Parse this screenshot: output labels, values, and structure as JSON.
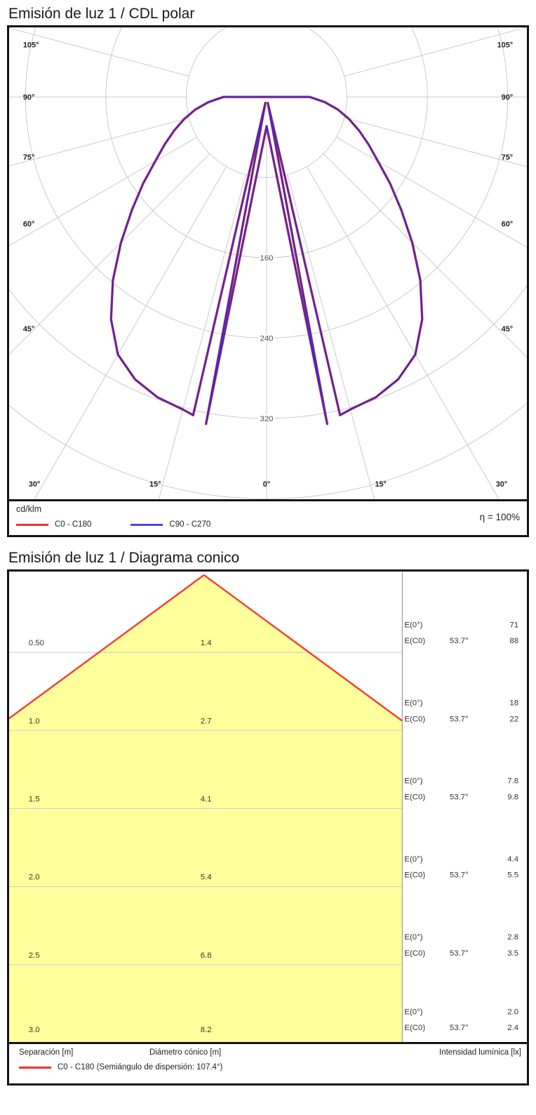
{
  "polar_panel": {
    "title": "Emisión de luz 1 / CDL polar",
    "unit_label": "cd/klm",
    "efficiency_label": "η = 100%",
    "legend": [
      {
        "label": "C0 - C180",
        "color": "#ee352b"
      },
      {
        "label": "C90 - C270",
        "color": "#4747ee"
      }
    ]
  },
  "cone_panel": {
    "title": "Emisión de luz 1 / Diagrama conico",
    "footer_columns": [
      "Separación [m]",
      "Diámetro cónico [m]",
      "Intensidad lumínica [lx]"
    ],
    "footer_legend": "C0 - C180 (Semiángulo de dispersión: 107.4°)",
    "legend_color": "#ee352b"
  },
  "chart_data": [
    {
      "type": "line",
      "variant": "polar-intensity-diagram",
      "title": "Emisión de luz 1 / CDL polar",
      "units": "cd/klm",
      "efficiency": "η = 100%",
      "angle_tick_labels_deg": [
        105,
        90,
        75,
        60,
        45,
        30,
        15,
        0
      ],
      "ring_values": [
        80,
        160,
        240,
        320,
        400,
        480
      ],
      "ring_labels": [
        160,
        240,
        320
      ],
      "symmetric": true,
      "series": [
        {
          "name": "C0 - C180",
          "color": "#d8281e"
        },
        {
          "name": "C90 - C270",
          "color": "#3a2bd2"
        }
      ],
      "samples_gamma_deg": [
        0,
        10.5,
        11.7,
        13,
        15,
        20,
        25,
        30,
        35,
        40,
        45,
        50,
        55,
        60,
        65,
        70,
        75,
        80,
        85,
        90,
        105
      ],
      "samples_cd_per_klm": [
        29,
        331,
        6,
        325,
        322,
        318,
        310,
        296,
        270,
        238,
        205,
        175,
        150,
        128,
        112,
        98,
        85,
        72,
        58,
        43,
        0
      ],
      "grid_color": "#c9c9c9"
    },
    {
      "type": "table",
      "variant": "cone-diagram",
      "title": "Emisión de luz 1 / Diagrama conico",
      "beam_half_angle_deg": 53.7,
      "beam_color": "#f43b2e",
      "cone_fill": "#ffff9c",
      "e0_label": "E(0°)",
      "ec0_label": "E(C0)",
      "angle_label": "53.7°",
      "columns": [
        "Separación [m]",
        "Diámetro cónico [m]",
        "Intensidad lumínica [lx]"
      ],
      "rows": [
        {
          "separation": "0.50",
          "diameter": "1.4",
          "e0": "71",
          "ec0": "88"
        },
        {
          "separation": "1.0",
          "diameter": "2.7",
          "e0": "18",
          "ec0": "22"
        },
        {
          "separation": "1.5",
          "diameter": "4.1",
          "e0": "7.8",
          "ec0": "9.8"
        },
        {
          "separation": "2.0",
          "diameter": "5.4",
          "e0": "4.4",
          "ec0": "5.5"
        },
        {
          "separation": "2.5",
          "diameter": "6.8",
          "e0": "2.8",
          "ec0": "3.5"
        },
        {
          "separation": "3.0",
          "diameter": "8.2",
          "e0": "2.0",
          "ec0": "2.4"
        }
      ]
    }
  ]
}
